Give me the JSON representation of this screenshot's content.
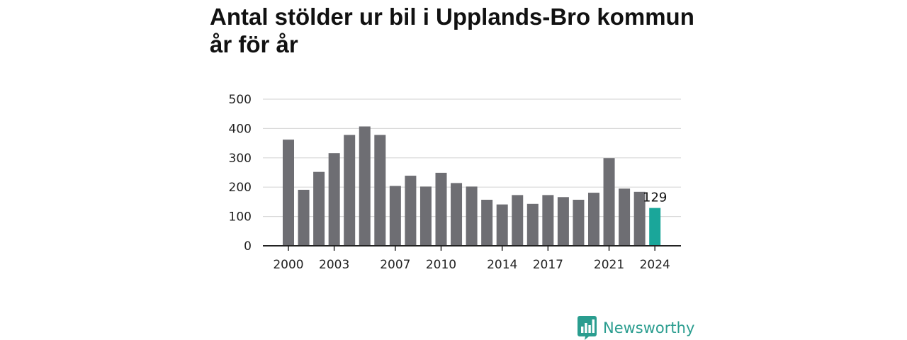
{
  "chart_data": {
    "type": "bar",
    "title": "Antal stölder ur bil i Upplands-Bro kommun år för år",
    "x": [
      2000,
      2001,
      2002,
      2003,
      2004,
      2005,
      2006,
      2007,
      2008,
      2009,
      2010,
      2011,
      2012,
      2013,
      2014,
      2015,
      2016,
      2017,
      2018,
      2019,
      2020,
      2021,
      2022,
      2023,
      2024
    ],
    "values": [
      362,
      191,
      252,
      316,
      378,
      407,
      378,
      204,
      239,
      202,
      249,
      214,
      202,
      157,
      141,
      173,
      143,
      173,
      166,
      157,
      181,
      299,
      195,
      184,
      129
    ],
    "x_tick_labels": [
      "2000",
      "2003",
      "2007",
      "2010",
      "2014",
      "2017",
      "2021",
      "2024"
    ],
    "x_tick_years": [
      2000,
      2003,
      2007,
      2010,
      2014,
      2017,
      2021,
      2024
    ],
    "y_ticks": [
      0,
      100,
      200,
      300,
      400,
      500
    ],
    "ylim": [
      0,
      500
    ],
    "xlabel": "",
    "ylabel": "",
    "grid": true,
    "highlight_year": 2024,
    "highlight_label": "129",
    "colors": {
      "bar": "#6e6e73",
      "highlight": "#1aa69a",
      "grid": "#d9d9d9",
      "axis": "#222222"
    }
  },
  "branding": {
    "name": "Newsworthy",
    "icon": "newsworthy-bar-chart-icon",
    "color": "#2a9d8f"
  }
}
